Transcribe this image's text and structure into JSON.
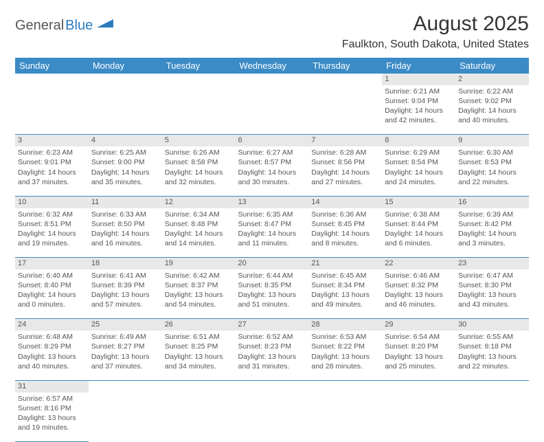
{
  "logo": {
    "part1": "General",
    "part2": "Blue",
    "shape_color": "#2b7bbf"
  },
  "title": "August 2025",
  "location": "Faulkton, South Dakota, United States",
  "colors": {
    "header_bg": "#3b8bc6",
    "header_text": "#ffffff",
    "daynum_bg": "#e8e8e8",
    "border": "#3b8bc6",
    "text": "#555555"
  },
  "day_headers": [
    "Sunday",
    "Monday",
    "Tuesday",
    "Wednesday",
    "Thursday",
    "Friday",
    "Saturday"
  ],
  "weeks": [
    [
      null,
      null,
      null,
      null,
      null,
      {
        "n": "1",
        "sr": "Sunrise: 6:21 AM",
        "ss": "Sunset: 9:04 PM",
        "dl1": "Daylight: 14 hours",
        "dl2": "and 42 minutes."
      },
      {
        "n": "2",
        "sr": "Sunrise: 6:22 AM",
        "ss": "Sunset: 9:02 PM",
        "dl1": "Daylight: 14 hours",
        "dl2": "and 40 minutes."
      }
    ],
    [
      {
        "n": "3",
        "sr": "Sunrise: 6:23 AM",
        "ss": "Sunset: 9:01 PM",
        "dl1": "Daylight: 14 hours",
        "dl2": "and 37 minutes."
      },
      {
        "n": "4",
        "sr": "Sunrise: 6:25 AM",
        "ss": "Sunset: 9:00 PM",
        "dl1": "Daylight: 14 hours",
        "dl2": "and 35 minutes."
      },
      {
        "n": "5",
        "sr": "Sunrise: 6:26 AM",
        "ss": "Sunset: 8:58 PM",
        "dl1": "Daylight: 14 hours",
        "dl2": "and 32 minutes."
      },
      {
        "n": "6",
        "sr": "Sunrise: 6:27 AM",
        "ss": "Sunset: 8:57 PM",
        "dl1": "Daylight: 14 hours",
        "dl2": "and 30 minutes."
      },
      {
        "n": "7",
        "sr": "Sunrise: 6:28 AM",
        "ss": "Sunset: 8:56 PM",
        "dl1": "Daylight: 14 hours",
        "dl2": "and 27 minutes."
      },
      {
        "n": "8",
        "sr": "Sunrise: 6:29 AM",
        "ss": "Sunset: 8:54 PM",
        "dl1": "Daylight: 14 hours",
        "dl2": "and 24 minutes."
      },
      {
        "n": "9",
        "sr": "Sunrise: 6:30 AM",
        "ss": "Sunset: 8:53 PM",
        "dl1": "Daylight: 14 hours",
        "dl2": "and 22 minutes."
      }
    ],
    [
      {
        "n": "10",
        "sr": "Sunrise: 6:32 AM",
        "ss": "Sunset: 8:51 PM",
        "dl1": "Daylight: 14 hours",
        "dl2": "and 19 minutes."
      },
      {
        "n": "11",
        "sr": "Sunrise: 6:33 AM",
        "ss": "Sunset: 8:50 PM",
        "dl1": "Daylight: 14 hours",
        "dl2": "and 16 minutes."
      },
      {
        "n": "12",
        "sr": "Sunrise: 6:34 AM",
        "ss": "Sunset: 8:48 PM",
        "dl1": "Daylight: 14 hours",
        "dl2": "and 14 minutes."
      },
      {
        "n": "13",
        "sr": "Sunrise: 6:35 AM",
        "ss": "Sunset: 8:47 PM",
        "dl1": "Daylight: 14 hours",
        "dl2": "and 11 minutes."
      },
      {
        "n": "14",
        "sr": "Sunrise: 6:36 AM",
        "ss": "Sunset: 8:45 PM",
        "dl1": "Daylight: 14 hours",
        "dl2": "and 8 minutes."
      },
      {
        "n": "15",
        "sr": "Sunrise: 6:38 AM",
        "ss": "Sunset: 8:44 PM",
        "dl1": "Daylight: 14 hours",
        "dl2": "and 6 minutes."
      },
      {
        "n": "16",
        "sr": "Sunrise: 6:39 AM",
        "ss": "Sunset: 8:42 PM",
        "dl1": "Daylight: 14 hours",
        "dl2": "and 3 minutes."
      }
    ],
    [
      {
        "n": "17",
        "sr": "Sunrise: 6:40 AM",
        "ss": "Sunset: 8:40 PM",
        "dl1": "Daylight: 14 hours",
        "dl2": "and 0 minutes."
      },
      {
        "n": "18",
        "sr": "Sunrise: 6:41 AM",
        "ss": "Sunset: 8:39 PM",
        "dl1": "Daylight: 13 hours",
        "dl2": "and 57 minutes."
      },
      {
        "n": "19",
        "sr": "Sunrise: 6:42 AM",
        "ss": "Sunset: 8:37 PM",
        "dl1": "Daylight: 13 hours",
        "dl2": "and 54 minutes."
      },
      {
        "n": "20",
        "sr": "Sunrise: 6:44 AM",
        "ss": "Sunset: 8:35 PM",
        "dl1": "Daylight: 13 hours",
        "dl2": "and 51 minutes."
      },
      {
        "n": "21",
        "sr": "Sunrise: 6:45 AM",
        "ss": "Sunset: 8:34 PM",
        "dl1": "Daylight: 13 hours",
        "dl2": "and 49 minutes."
      },
      {
        "n": "22",
        "sr": "Sunrise: 6:46 AM",
        "ss": "Sunset: 8:32 PM",
        "dl1": "Daylight: 13 hours",
        "dl2": "and 46 minutes."
      },
      {
        "n": "23",
        "sr": "Sunrise: 6:47 AM",
        "ss": "Sunset: 8:30 PM",
        "dl1": "Daylight: 13 hours",
        "dl2": "and 43 minutes."
      }
    ],
    [
      {
        "n": "24",
        "sr": "Sunrise: 6:48 AM",
        "ss": "Sunset: 8:29 PM",
        "dl1": "Daylight: 13 hours",
        "dl2": "and 40 minutes."
      },
      {
        "n": "25",
        "sr": "Sunrise: 6:49 AM",
        "ss": "Sunset: 8:27 PM",
        "dl1": "Daylight: 13 hours",
        "dl2": "and 37 minutes."
      },
      {
        "n": "26",
        "sr": "Sunrise: 6:51 AM",
        "ss": "Sunset: 8:25 PM",
        "dl1": "Daylight: 13 hours",
        "dl2": "and 34 minutes."
      },
      {
        "n": "27",
        "sr": "Sunrise: 6:52 AM",
        "ss": "Sunset: 8:23 PM",
        "dl1": "Daylight: 13 hours",
        "dl2": "and 31 minutes."
      },
      {
        "n": "28",
        "sr": "Sunrise: 6:53 AM",
        "ss": "Sunset: 8:22 PM",
        "dl1": "Daylight: 13 hours",
        "dl2": "and 28 minutes."
      },
      {
        "n": "29",
        "sr": "Sunrise: 6:54 AM",
        "ss": "Sunset: 8:20 PM",
        "dl1": "Daylight: 13 hours",
        "dl2": "and 25 minutes."
      },
      {
        "n": "30",
        "sr": "Sunrise: 6:55 AM",
        "ss": "Sunset: 8:18 PM",
        "dl1": "Daylight: 13 hours",
        "dl2": "and 22 minutes."
      }
    ],
    [
      {
        "n": "31",
        "sr": "Sunrise: 6:57 AM",
        "ss": "Sunset: 8:16 PM",
        "dl1": "Daylight: 13 hours",
        "dl2": "and 19 minutes."
      },
      null,
      null,
      null,
      null,
      null,
      null
    ]
  ]
}
